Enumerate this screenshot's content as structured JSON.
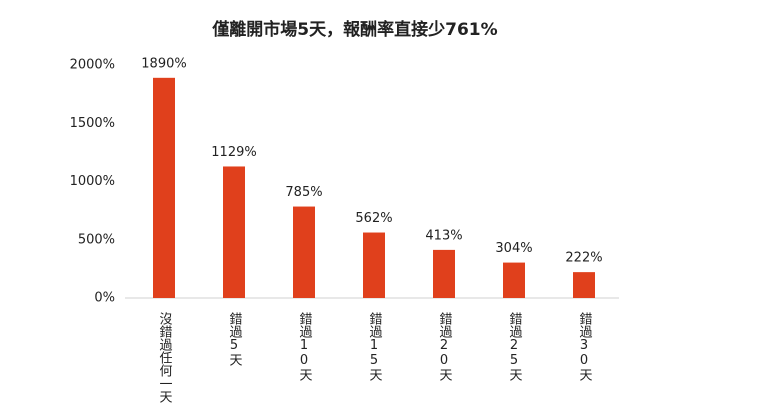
{
  "chart_data": {
    "type": "bar",
    "title": "僅離開市場5天，報酬率直接少761%",
    "categories": [
      "沒錯過任何一天",
      "錯過5天",
      "錯過10天",
      "錯過15天",
      "錯過20天",
      "錯過25天",
      "錯過30天"
    ],
    "values": [
      1890,
      1129,
      785,
      562,
      413,
      304,
      222
    ],
    "value_labels": [
      "1890%",
      "1129%",
      "785%",
      "562%",
      "413%",
      "304%",
      "222%"
    ],
    "color": "#e0401c",
    "ylim": [
      0,
      2000
    ],
    "yticks": [
      {
        "value": 0,
        "label": "0%"
      },
      {
        "value": 500,
        "label": "500%"
      },
      {
        "value": 1000,
        "label": "1000%"
      },
      {
        "value": 1500,
        "label": "1500%"
      },
      {
        "value": 2000,
        "label": "2000%"
      }
    ],
    "grid": false
  }
}
